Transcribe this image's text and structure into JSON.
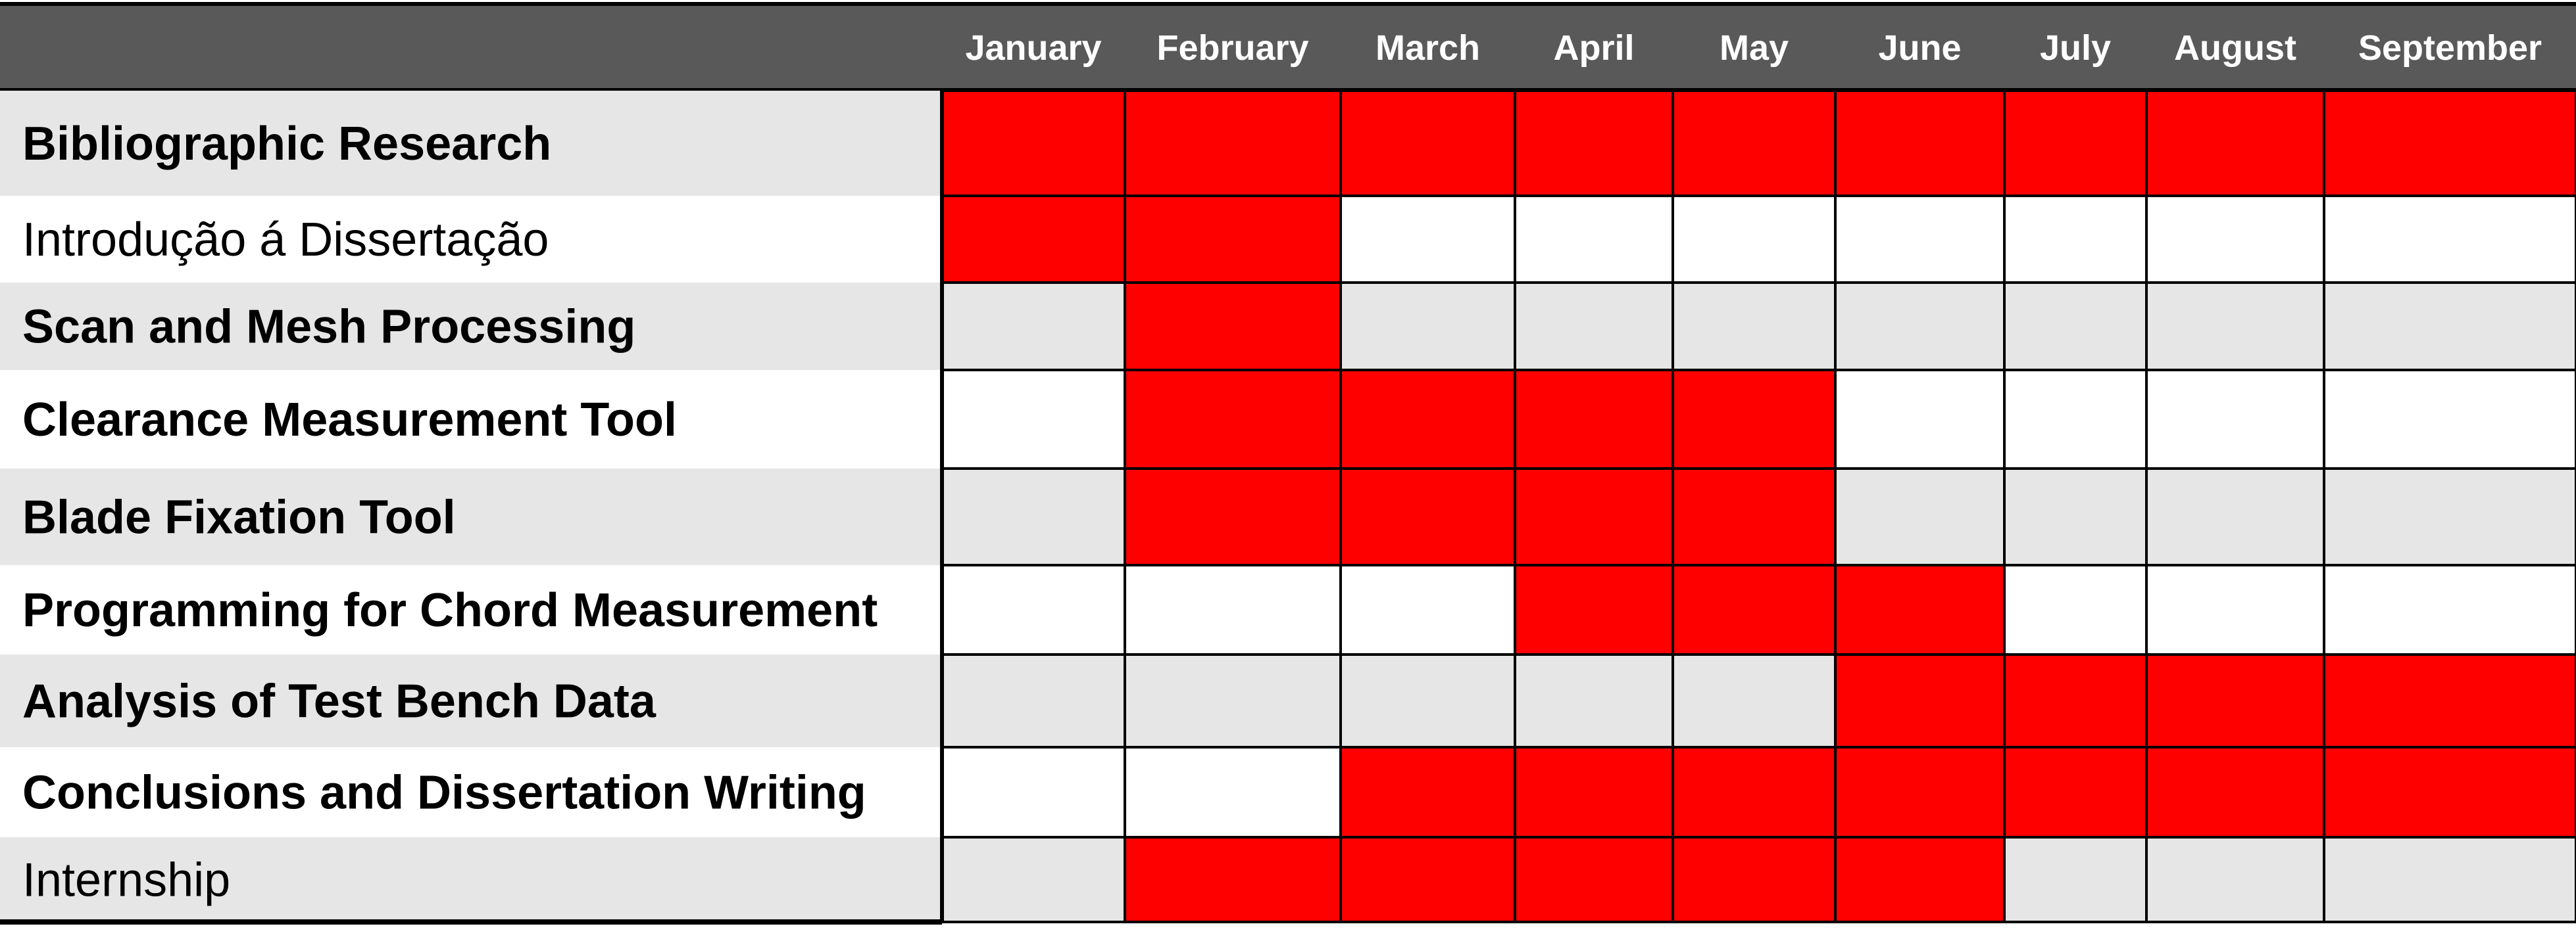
{
  "chart_data": {
    "type": "gantt",
    "months": [
      "January",
      "February",
      "March",
      "April",
      "May",
      "June",
      "July",
      "August",
      "September"
    ],
    "tasks": [
      {
        "label": "Bibliographic Research",
        "bold": true,
        "active": [
          1,
          1,
          1,
          1,
          1,
          1,
          1,
          1,
          1
        ]
      },
      {
        "label": "Introdução á Dissertação",
        "bold": false,
        "active": [
          1,
          1,
          0,
          0,
          0,
          0,
          0,
          0,
          0
        ]
      },
      {
        "label": "Scan and Mesh Processing",
        "bold": true,
        "active": [
          0,
          1,
          0,
          0,
          0,
          0,
          0,
          0,
          0
        ]
      },
      {
        "label": "Clearance Measurement Tool",
        "bold": true,
        "active": [
          0,
          1,
          1,
          1,
          1,
          0,
          0,
          0,
          0
        ]
      },
      {
        "label": "Blade Fixation Tool",
        "bold": true,
        "active": [
          0,
          1,
          1,
          1,
          1,
          0,
          0,
          0,
          0
        ]
      },
      {
        "label": "Programming for Chord Measurement",
        "bold": true,
        "active": [
          0,
          0,
          0,
          1,
          1,
          1,
          0,
          0,
          0
        ]
      },
      {
        "label": "Analysis of Test Bench Data",
        "bold": true,
        "active": [
          0,
          0,
          0,
          0,
          0,
          1,
          1,
          1,
          1
        ]
      },
      {
        "label": "Conclusions and Dissertation Writing",
        "bold": true,
        "active": [
          0,
          0,
          1,
          1,
          1,
          1,
          1,
          1,
          1
        ]
      },
      {
        "label": "Internship",
        "bold": false,
        "active": [
          0,
          1,
          1,
          1,
          1,
          1,
          0,
          0,
          0
        ]
      }
    ]
  },
  "colors": {
    "header_bg": "#595959",
    "active": "#ff0000",
    "row_shaded": "#e6e6e6",
    "row_plain": "#ffffff",
    "grid": "#000000"
  }
}
